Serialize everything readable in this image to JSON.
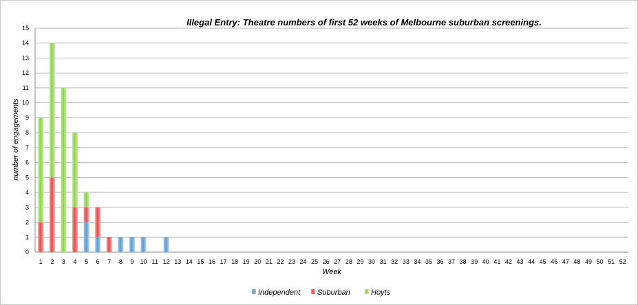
{
  "chart_data": {
    "type": "bar",
    "stacked": true,
    "title": "Illegal Entry: Theatre numbers of first 52 weeks of Melbourne suburban screenings.",
    "xlabel": "Week",
    "ylabel": "number of engagements",
    "ylim": [
      0,
      15
    ],
    "yticks": [
      "0",
      "1",
      "2",
      "3",
      "4",
      "5",
      "6",
      "7",
      "8",
      "9",
      "10",
      "11",
      "12",
      "13",
      "14",
      "15"
    ],
    "categories": [
      "1",
      "2",
      "3",
      "4",
      "5",
      "6",
      "7",
      "8",
      "9",
      "10",
      "11",
      "12",
      "13",
      "14",
      "15",
      "16",
      "17",
      "18",
      "19",
      "20",
      "21",
      "22",
      "23",
      "24",
      "25",
      "26",
      "27",
      "28",
      "29",
      "30",
      "31",
      "32",
      "33",
      "34",
      "35",
      "36",
      "37",
      "38",
      "39",
      "40",
      "41",
      "42",
      "43",
      "44",
      "45",
      "46",
      "47",
      "48",
      "49",
      "50",
      "51",
      "52"
    ],
    "series": [
      {
        "name": "Independent",
        "color": "#5b9bd5",
        "values": [
          0,
          0,
          0,
          0,
          2,
          1,
          0,
          1,
          1,
          1,
          0,
          1,
          0,
          0,
          0,
          0,
          0,
          0,
          0,
          0,
          0,
          0,
          0,
          0,
          0,
          0,
          0,
          0,
          0,
          0,
          0,
          0,
          0,
          0,
          0,
          0,
          0,
          0,
          0,
          0,
          0,
          0,
          0,
          0,
          0,
          0,
          0,
          0,
          0,
          0,
          0,
          0
        ]
      },
      {
        "name": "Suburban",
        "color": "#e94b4b",
        "values": [
          2,
          5,
          0,
          3,
          1,
          2,
          1,
          0,
          0,
          0,
          0,
          0,
          0,
          0,
          0,
          0,
          0,
          0,
          0,
          0,
          0,
          0,
          0,
          0,
          0,
          0,
          0,
          0,
          0,
          0,
          0,
          0,
          0,
          0,
          0,
          0,
          0,
          0,
          0,
          0,
          0,
          0,
          0,
          0,
          0,
          0,
          0,
          0,
          0,
          0,
          0,
          0
        ]
      },
      {
        "name": "Hoyts",
        "color": "#8ed44a",
        "values": [
          7,
          9,
          11,
          5,
          1,
          0,
          0,
          0,
          0,
          0,
          0,
          0,
          0,
          0,
          0,
          0,
          0,
          0,
          0,
          0,
          0,
          0,
          0,
          0,
          0,
          0,
          0,
          0,
          0,
          0,
          0,
          0,
          0,
          0,
          0,
          0,
          0,
          0,
          0,
          0,
          0,
          0,
          0,
          0,
          0,
          0,
          0,
          0,
          0,
          0,
          0,
          0
        ]
      }
    ],
    "grid": true,
    "legend_position": "bottom"
  }
}
